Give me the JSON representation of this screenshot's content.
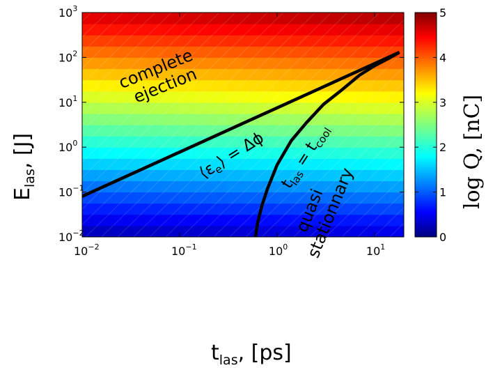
{
  "chart_data": {
    "type": "heatmap",
    "title": "",
    "x_axis": {
      "label_main": "t",
      "label_sub": "las",
      "label_unit": ", [ps]",
      "scale": "log",
      "lim": [
        0.01,
        20
      ],
      "ticks": [
        0.01,
        0.1,
        1,
        10
      ],
      "tick_labels": [
        {
          "base": "10",
          "exp": "−2"
        },
        {
          "base": "10",
          "exp": "−1"
        },
        {
          "base": "10",
          "exp": "0"
        },
        {
          "base": "10",
          "exp": "1"
        }
      ]
    },
    "y_axis": {
      "label_main": "E",
      "label_sub": "las",
      "label_unit": ", [J]",
      "scale": "log",
      "lim": [
        0.01,
        1000
      ],
      "ticks": [
        0.01,
        0.1,
        1,
        10,
        100,
        1000
      ],
      "tick_labels": [
        {
          "base": "10",
          "exp": "−2"
        },
        {
          "base": "10",
          "exp": "−1"
        },
        {
          "base": "10",
          "exp": "0"
        },
        {
          "base": "10",
          "exp": "1"
        },
        {
          "base": "10",
          "exp": "2"
        },
        {
          "base": "10",
          "exp": "3"
        }
      ]
    },
    "colorbar": {
      "label": "log Q, [nC]",
      "range": [
        0,
        5
      ],
      "ticks": [
        0,
        1,
        2,
        3,
        4,
        5
      ],
      "colormap": "jet"
    },
    "grid": {
      "log10_t_min": -2,
      "log10_t_max": 1.301,
      "log10_E_min": -2,
      "log10_E_max": 3,
      "columns": 20,
      "rows": 20,
      "value_at_origin": 0.2,
      "slope_per_decade_E": 0.88,
      "slope_per_decade_t": 0.07
    },
    "curves": [
      {
        "name": "energy_threshold",
        "label_parts": [
          "⟨ε",
          "e",
          "⟩ = Δϕ"
        ],
        "x": [
          0.01,
          18
        ],
        "y": [
          0.08,
          130
        ]
      },
      {
        "name": "cooling_time",
        "label_parts": [
          "t",
          "las",
          " = t",
          "cool"
        ],
        "x": [
          0.6,
          0.63,
          0.7,
          0.8,
          1.0,
          1.4,
          2.0,
          3.0,
          4.5,
          7.0,
          10,
          14,
          18
        ],
        "y": [
          0.01,
          0.02,
          0.05,
          0.12,
          0.4,
          1.4,
          3.5,
          9,
          18,
          40,
          65,
          95,
          130
        ]
      }
    ],
    "region_labels": [
      {
        "name": "complete-ejection",
        "lines": [
          "complete",
          "ejection"
        ]
      },
      {
        "name": "quasi-stationary",
        "lines": [
          "quasi",
          "stationnary"
        ]
      }
    ],
    "colors": {
      "axes": "#000000",
      "curves": "#000000",
      "background": "#ffffff"
    }
  }
}
